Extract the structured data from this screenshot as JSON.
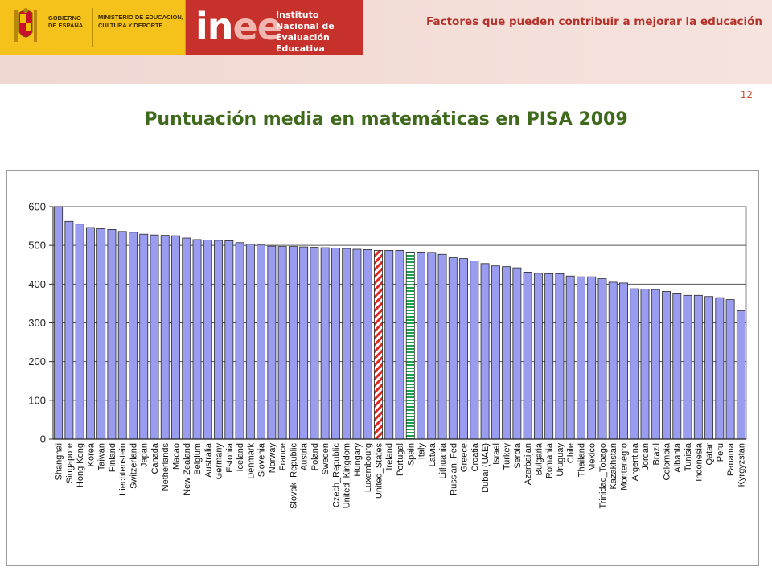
{
  "header": {
    "gov_label": "GOBIERNO DE ESPAÑA",
    "ministry_label": "MINISTERIO DE EDUCACIÓN, CULTURA Y DEPORTE",
    "inee_logo": "inee",
    "inee_name": "Instituto Nacional de Evaluación Educativa",
    "title": "Factores que pueden contribuir a mejorar la educación"
  },
  "page_number": "12",
  "slide_title": "Puntuación media en matemáticas en PISA 2009",
  "colors": {
    "bar_fill": "#9a9cf0",
    "bar_stroke": "#2a2a2a",
    "highlight_us": "#e0281e",
    "highlight_spain": "#17a34a",
    "accent_red": "#b5322b",
    "title_green": "#3f6a1c",
    "gov_yellow": "#f4c21a"
  },
  "chart_data": {
    "type": "bar",
    "categories": [
      "Shanghai",
      "Singapore",
      "Hong Kong",
      "Korea",
      "Taiwan",
      "Finland",
      "Liechtenstein",
      "Switzerland",
      "Japan",
      "Canada",
      "Netherlands",
      "Macao",
      "New Zealand",
      "Belgium",
      "Australia",
      "Germany",
      "Estonia",
      "Iceland",
      "Denmark",
      "Slovenia",
      "Norway",
      "France",
      "Slovak_Republic",
      "Austria",
      "Poland",
      "Sweden",
      "Czech_Republic",
      "United_Kingdom",
      "Hungary",
      "Luxembourg",
      "United_States",
      "Ireland",
      "Portugal",
      "Spain",
      "Italy",
      "Latvia",
      "Lithuania",
      "Russian_Fed",
      "Greece",
      "Croatia",
      "Dubai (UAE)",
      "Israel",
      "Turkey",
      "Serbia",
      "Azerbaijan",
      "Bulgaria",
      "Romania",
      "Uruguay",
      "Chile",
      "Thailand",
      "Mexico",
      "Trinidad_Tobago",
      "Kazakhstan",
      "Montenegro",
      "Argentina",
      "Jordan",
      "Brazil",
      "Colombia",
      "Albania",
      "Tunisia",
      "Indonesia",
      "Qatar",
      "Peru",
      "Panama",
      "Kyrgyzstan"
    ],
    "values": [
      600,
      562,
      555,
      546,
      543,
      541,
      536,
      534,
      529,
      527,
      526,
      525,
      519,
      515,
      514,
      513,
      512,
      507,
      503,
      501,
      498,
      497,
      497,
      496,
      495,
      494,
      493,
      492,
      490,
      489,
      487,
      487,
      487,
      483,
      483,
      482,
      477,
      468,
      466,
      460,
      453,
      447,
      445,
      442,
      431,
      428,
      427,
      427,
      421,
      419,
      419,
      414,
      405,
      403,
      388,
      387,
      386,
      381,
      377,
      371,
      371,
      368,
      365,
      360,
      331
    ],
    "highlighted": {
      "United_States": "hatched-red",
      "Spain": "hatched-green"
    },
    "yticks": [
      0,
      100,
      200,
      300,
      400,
      500,
      600
    ],
    "ylim": [
      0,
      600
    ],
    "grid": true,
    "legend": "none"
  }
}
